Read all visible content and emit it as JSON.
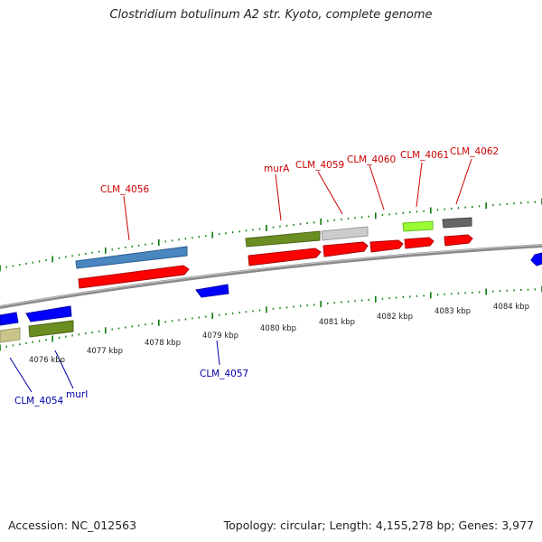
{
  "title": "Clostridium botulinum A2 str. Kyoto, complete genome",
  "accession": "Accession: NC_012563",
  "summary": "Topology: circular; Length: 4,155,278 bp; Genes: 3,977",
  "colors": {
    "forward_label": "#cc0000",
    "reverse_label": "#0000aa",
    "tick": "#0a7a0a",
    "backbone": "#8a8a8a",
    "cds": "#ff0000",
    "reverse_gene": "#0000ff",
    "steelblue": "#4a86c0",
    "olive": "#6b8e23",
    "lightgray": "#cccccc",
    "lime": "#99ff33",
    "darkgray": "#666666",
    "khaki": "#c9c48a"
  },
  "scale_labels": [
    "4076 kbp",
    "4077 kbp",
    "4078 kbp",
    "4079 kbp",
    "4080 kbp",
    "4081 kbp",
    "4082 kbp",
    "4083 kbp",
    "4084 kbp"
  ],
  "forward_genes": [
    "CLM_4056",
    "murA",
    "CLM_4059",
    "CLM_4060",
    "CLM_4061",
    "CLM_4062"
  ],
  "reverse_genes": [
    "CLM_4057",
    "CLM_4054",
    "murI"
  ]
}
